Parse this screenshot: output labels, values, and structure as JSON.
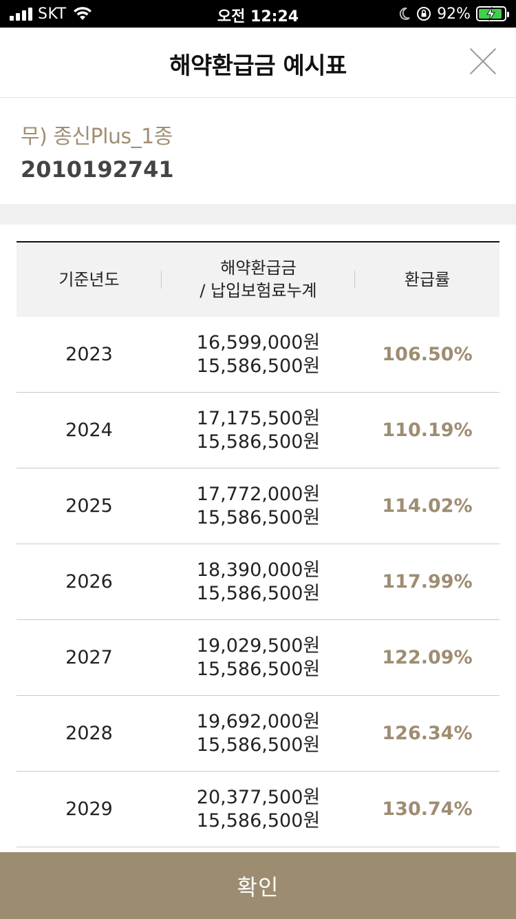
{
  "status_bar": {
    "carrier": "SKT",
    "time": "오전 12:24",
    "battery_percent": "92%",
    "battery_level": 0.92,
    "icons": [
      "signal-icon",
      "wifi-icon",
      "moon-icon",
      "orientation-lock-icon",
      "battery-charging-icon"
    ]
  },
  "header": {
    "title": "해약환급금 예시표",
    "close_icon": "close-icon"
  },
  "product": {
    "name": "무) 종신Plus_1종",
    "number": "2010192741"
  },
  "table": {
    "headers": {
      "year": "기준년도",
      "amount_line1": "해약환급금",
      "amount_line2": "/ 납입보험료누계",
      "rate": "환급률"
    },
    "rows": [
      {
        "year": "2023",
        "refund": "16,599,000원",
        "paid": "15,586,500원",
        "rate": "106.50%"
      },
      {
        "year": "2024",
        "refund": "17,175,500원",
        "paid": "15,586,500원",
        "rate": "110.19%"
      },
      {
        "year": "2025",
        "refund": "17,772,000원",
        "paid": "15,586,500원",
        "rate": "114.02%"
      },
      {
        "year": "2026",
        "refund": "18,390,000원",
        "paid": "15,586,500원",
        "rate": "117.99%"
      },
      {
        "year": "2027",
        "refund": "19,029,500원",
        "paid": "15,586,500원",
        "rate": "122.09%"
      },
      {
        "year": "2028",
        "refund": "19,692,000원",
        "paid": "15,586,500원",
        "rate": "126.34%"
      },
      {
        "year": "2029",
        "refund": "20,377,500원",
        "paid": "15,586,500원",
        "rate": "130.74%"
      }
    ]
  },
  "confirm_button": {
    "label": "확인"
  },
  "colors": {
    "accent": "#9c8d71",
    "rate_text": "#9e8d72",
    "product_name": "#a08e74"
  }
}
